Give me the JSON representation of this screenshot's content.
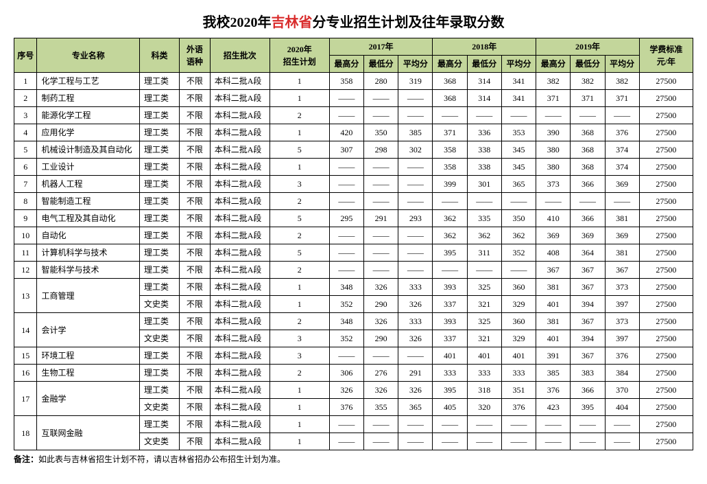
{
  "title": {
    "prefix": "我校2020年",
    "highlight": "吉林省",
    "suffix": "分专业招生计划及往年录取分数"
  },
  "headers": {
    "idx": "序号",
    "major": "专业名称",
    "category": "科类",
    "lang": "外语\n语种",
    "batch": "招生批次",
    "plan": "2020年\n招生计划",
    "year2017": "2017年",
    "year2018": "2018年",
    "year2019": "2019年",
    "max": "最高分",
    "min": "最低分",
    "avg": "平均分",
    "fee": "学费标准\n元/年"
  },
  "dash": "——",
  "rows": [
    {
      "idx": "1",
      "major": "化学工程与工艺",
      "cat": "理工类",
      "lang": "不限",
      "batch": "本科二批A段",
      "plan": "1",
      "s": [
        358,
        280,
        319,
        368,
        314,
        341,
        382,
        382,
        382
      ],
      "fee": "27500"
    },
    {
      "idx": "2",
      "major": "制药工程",
      "cat": "理工类",
      "lang": "不限",
      "batch": "本科二批A段",
      "plan": "1",
      "s": [
        "",
        "",
        "",
        368,
        314,
        341,
        371,
        371,
        371
      ],
      "fee": "27500"
    },
    {
      "idx": "3",
      "major": "能源化学工程",
      "cat": "理工类",
      "lang": "不限",
      "batch": "本科二批A段",
      "plan": "2",
      "s": [
        "",
        "",
        "",
        "",
        "",
        "",
        "",
        "",
        ""
      ],
      "fee": "27500"
    },
    {
      "idx": "4",
      "major": "应用化学",
      "cat": "理工类",
      "lang": "不限",
      "batch": "本科二批A段",
      "plan": "1",
      "s": [
        420,
        350,
        385,
        371,
        336,
        353,
        390,
        368,
        376
      ],
      "fee": "27500"
    },
    {
      "idx": "5",
      "major": "机械设计制造及其自动化",
      "cat": "理工类",
      "lang": "不限",
      "batch": "本科二批A段",
      "plan": "5",
      "s": [
        307,
        298,
        302,
        358,
        338,
        345,
        380,
        368,
        374
      ],
      "fee": "27500"
    },
    {
      "idx": "6",
      "major": "工业设计",
      "cat": "理工类",
      "lang": "不限",
      "batch": "本科二批A段",
      "plan": "1",
      "s": [
        "",
        "",
        "",
        358,
        338,
        345,
        380,
        368,
        374
      ],
      "fee": "27500"
    },
    {
      "idx": "7",
      "major": "机器人工程",
      "cat": "理工类",
      "lang": "不限",
      "batch": "本科二批A段",
      "plan": "3",
      "s": [
        "",
        "",
        "",
        399,
        301,
        365,
        373,
        366,
        369
      ],
      "fee": "27500"
    },
    {
      "idx": "8",
      "major": "智能制造工程",
      "cat": "理工类",
      "lang": "不限",
      "batch": "本科二批A段",
      "plan": "2",
      "s": [
        "",
        "",
        "",
        "",
        "",
        "",
        "",
        "",
        ""
      ],
      "fee": "27500"
    },
    {
      "idx": "9",
      "major": "电气工程及其自动化",
      "cat": "理工类",
      "lang": "不限",
      "batch": "本科二批A段",
      "plan": "5",
      "s": [
        295,
        291,
        293,
        362,
        335,
        350,
        410,
        366,
        381
      ],
      "fee": "27500"
    },
    {
      "idx": "10",
      "major": "自动化",
      "cat": "理工类",
      "lang": "不限",
      "batch": "本科二批A段",
      "plan": "2",
      "s": [
        "",
        "",
        "",
        362,
        362,
        362,
        369,
        369,
        369
      ],
      "fee": "27500"
    },
    {
      "idx": "11",
      "major": "计算机科学与技术",
      "cat": "理工类",
      "lang": "不限",
      "batch": "本科二批A段",
      "plan": "5",
      "s": [
        "",
        "",
        "",
        395,
        311,
        352,
        408,
        364,
        381
      ],
      "fee": "27500"
    },
    {
      "idx": "12",
      "major": "智能科学与技术",
      "cat": "理工类",
      "lang": "不限",
      "batch": "本科二批A段",
      "plan": "2",
      "s": [
        "",
        "",
        "",
        "",
        "",
        "",
        367,
        367,
        367
      ],
      "fee": "27500"
    },
    {
      "idx": "13",
      "major": "工商管理",
      "rowspan": 2,
      "cat": "理工类",
      "lang": "不限",
      "batch": "本科二批A段",
      "plan": "1",
      "s": [
        348,
        326,
        333,
        393,
        325,
        360,
        381,
        367,
        373
      ],
      "fee": "27500"
    },
    {
      "cat": "文史类",
      "lang": "不限",
      "batch": "本科二批A段",
      "plan": "1",
      "s": [
        352,
        290,
        326,
        337,
        321,
        329,
        401,
        394,
        397
      ],
      "fee": "27500"
    },
    {
      "idx": "14",
      "major": "会计学",
      "rowspan": 2,
      "cat": "理工类",
      "lang": "不限",
      "batch": "本科二批A段",
      "plan": "2",
      "s": [
        348,
        326,
        333,
        393,
        325,
        360,
        381,
        367,
        373
      ],
      "fee": "27500"
    },
    {
      "cat": "文史类",
      "lang": "不限",
      "batch": "本科二批A段",
      "plan": "3",
      "s": [
        352,
        290,
        326,
        337,
        321,
        329,
        401,
        394,
        397
      ],
      "fee": "27500"
    },
    {
      "idx": "15",
      "major": "环境工程",
      "cat": "理工类",
      "lang": "不限",
      "batch": "本科二批A段",
      "plan": "3",
      "s": [
        "",
        "",
        "",
        401,
        401,
        401,
        391,
        367,
        376
      ],
      "fee": "27500"
    },
    {
      "idx": "16",
      "major": "生物工程",
      "cat": "理工类",
      "lang": "不限",
      "batch": "本科二批A段",
      "plan": "2",
      "s": [
        306,
        276,
        291,
        333,
        333,
        333,
        385,
        383,
        384
      ],
      "fee": "27500"
    },
    {
      "idx": "17",
      "major": "金融学",
      "rowspan": 2,
      "cat": "理工类",
      "lang": "不限",
      "batch": "本科二批A段",
      "plan": "1",
      "s": [
        326,
        326,
        326,
        395,
        318,
        351,
        376,
        366,
        370
      ],
      "fee": "27500"
    },
    {
      "cat": "文史类",
      "lang": "不限",
      "batch": "本科二批A段",
      "plan": "1",
      "s": [
        376,
        355,
        365,
        405,
        320,
        376,
        423,
        395,
        404
      ],
      "fee": "27500"
    },
    {
      "idx": "18",
      "major": "互联网金融",
      "rowspan": 2,
      "cat": "理工类",
      "lang": "不限",
      "batch": "本科二批A段",
      "plan": "1",
      "s": [
        "",
        "",
        "",
        "",
        "",
        "",
        "",
        "",
        ""
      ],
      "fee": "27500"
    },
    {
      "cat": "文史类",
      "lang": "不限",
      "batch": "本科二批A段",
      "plan": "1",
      "s": [
        "",
        "",
        "",
        "",
        "",
        "",
        "",
        "",
        ""
      ],
      "fee": "27500"
    }
  ],
  "footnote": {
    "label": "备注：",
    "text": "如此表与吉林省招生计划不符，请以吉林省招办公布招生计划为准。"
  }
}
